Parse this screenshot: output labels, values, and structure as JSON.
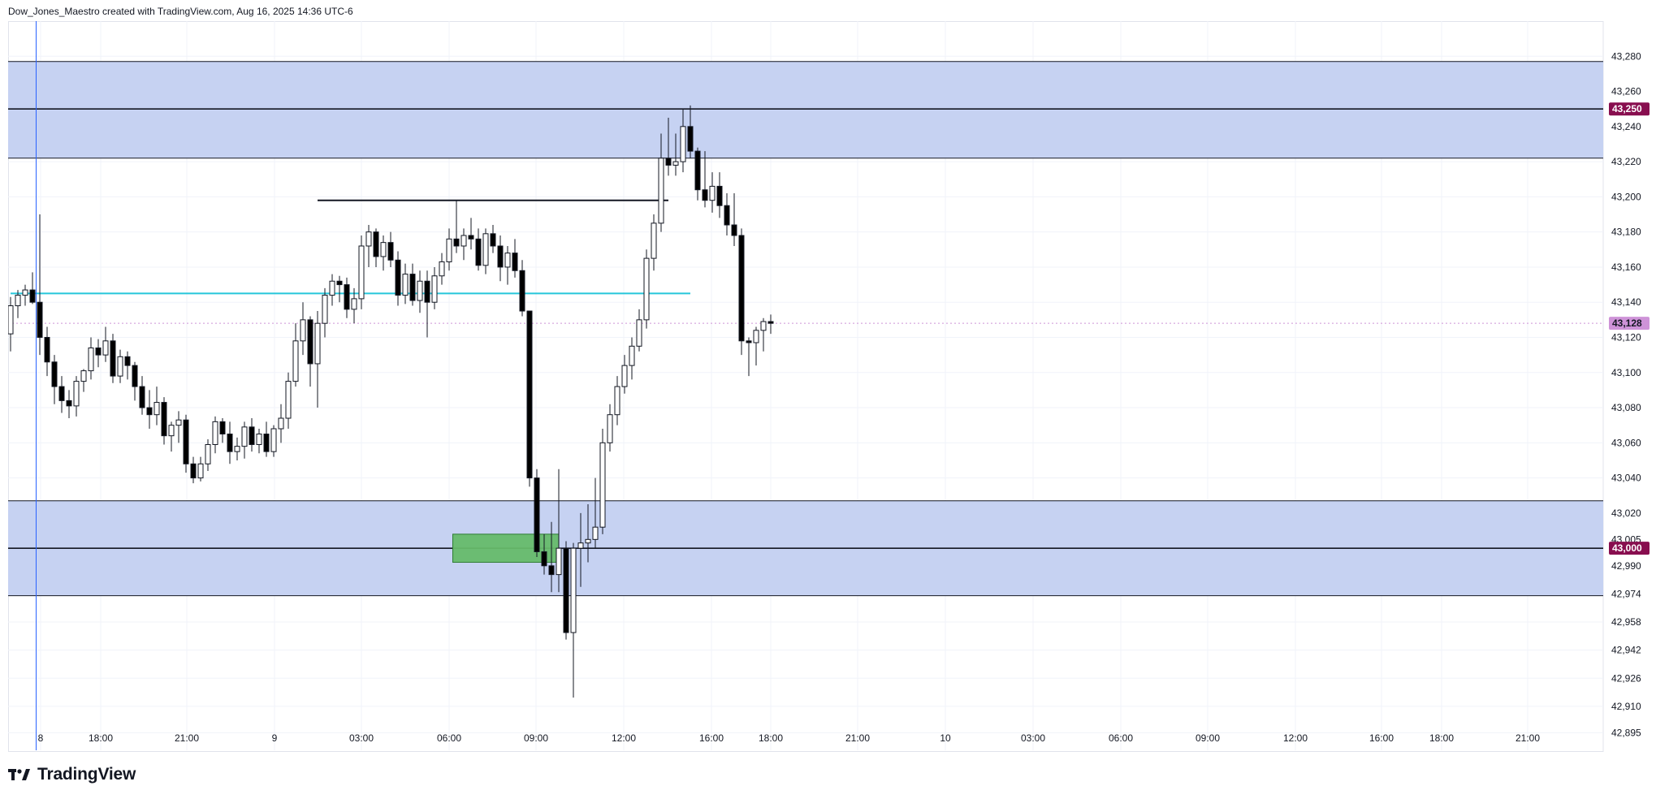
{
  "header": {
    "caption": "Dow_Jones_Maestro created with TradingView.com, Aug 16, 2025 14:36 UTC-6"
  },
  "brand": {
    "name": "TradingView",
    "icon": "tradingview-logo-icon"
  },
  "colors": {
    "zone_fill": "#c3d0f1",
    "zone_border": "#131722",
    "cyan_line": "#26c6da",
    "vertical_line": "#2962ff",
    "green_box": "#66bb6a",
    "badge_level": "#880e4f",
    "badge_price": "#ce93d8",
    "candle_up": "#ffffff",
    "candle_down": "#000000",
    "grid": "#f0f3fa"
  },
  "chart_data": {
    "type": "candlestick",
    "y_axis": {
      "ticks": [
        43280,
        43260,
        43240,
        43220,
        43200,
        43180,
        43160,
        43140,
        43120,
        43100,
        43080,
        43060,
        43040,
        43020,
        43005,
        42990,
        42974,
        42958,
        42942,
        42926,
        42910,
        42895
      ]
    },
    "x_axis": {
      "ticks": [
        "8",
        "18:00",
        "21:00",
        "9",
        "03:00",
        "06:00",
        "09:00",
        "12:00",
        "16:00",
        "18:00",
        "21:00",
        "10",
        "03:00",
        "06:00",
        "09:00",
        "12:00",
        "16:00",
        "18:00",
        "21:00"
      ]
    },
    "ylim": [
      42885,
      43300
    ],
    "price_labels": [
      {
        "value": 43250,
        "text": "43,250",
        "kind": "level"
      },
      {
        "value": 43000,
        "text": "43,000",
        "kind": "level"
      },
      {
        "value": 43128,
        "text": "43,128",
        "kind": "current"
      }
    ],
    "zones": [
      {
        "top": 43277,
        "bottom": 43222
      },
      {
        "top": 43027,
        "bottom": 42973
      }
    ],
    "horizontal_lines": [
      {
        "value": 43250,
        "style": "level"
      },
      {
        "value": 43000,
        "style": "level"
      },
      {
        "value": 43198,
        "style": "segment",
        "from_candle": 42,
        "to_candle": 90
      },
      {
        "value": 43145,
        "style": "cyan",
        "from_candle": 0,
        "to_candle": 93
      }
    ],
    "vertical_line_candle": 3.5,
    "green_box": {
      "top": 43008,
      "bottom": 42992,
      "from_candle": 60.5,
      "to_candle": 75
    },
    "candles": [
      [
        43122,
        43143,
        43112,
        43138
      ],
      [
        43138,
        43147,
        43131,
        43144
      ],
      [
        43144,
        43150,
        43138,
        43147
      ],
      [
        43147,
        43157,
        43139,
        43140
      ],
      [
        43140,
        43190,
        43110,
        43120
      ],
      [
        43120,
        43126,
        43098,
        43106
      ],
      [
        43106,
        43110,
        43082,
        43092
      ],
      [
        43092,
        43098,
        43077,
        43084
      ],
      [
        43084,
        43090,
        43074,
        43081
      ],
      [
        43081,
        43098,
        43075,
        43095
      ],
      [
        43095,
        43102,
        43089,
        43101
      ],
      [
        43101,
        43120,
        43096,
        43114
      ],
      [
        43114,
        43119,
        43103,
        43110
      ],
      [
        43110,
        43126,
        43106,
        43118
      ],
      [
        43118,
        43122,
        43094,
        43098
      ],
      [
        43098,
        43113,
        43094,
        43109
      ],
      [
        43109,
        43112,
        43096,
        43104
      ],
      [
        43104,
        43106,
        43084,
        43092
      ],
      [
        43092,
        43098,
        43076,
        43080
      ],
      [
        43080,
        43090,
        43068,
        43076
      ],
      [
        43076,
        43092,
        43070,
        43083
      ],
      [
        43083,
        43086,
        43059,
        43064
      ],
      [
        43064,
        43072,
        43055,
        43070
      ],
      [
        43070,
        43078,
        43060,
        43073
      ],
      [
        43073,
        43076,
        43043,
        43048
      ],
      [
        43048,
        43052,
        43037,
        43040
      ],
      [
        43040,
        43052,
        43038,
        43048
      ],
      [
        43048,
        43062,
        43044,
        43059
      ],
      [
        43059,
        43075,
        43054,
        43072
      ],
      [
        43072,
        43074,
        43060,
        43065
      ],
      [
        43065,
        43072,
        43048,
        43055
      ],
      [
        43055,
        43063,
        43050,
        43058
      ],
      [
        43058,
        43072,
        43051,
        43069
      ],
      [
        43069,
        43074,
        43055,
        43059
      ],
      [
        43059,
        43068,
        43054,
        43065
      ],
      [
        43065,
        43072,
        43052,
        43055
      ],
      [
        43055,
        43070,
        43052,
        43068
      ],
      [
        43068,
        43082,
        43060,
        43074
      ],
      [
        43074,
        43100,
        43068,
        43095
      ],
      [
        43095,
        43128,
        43092,
        43118
      ],
      [
        43118,
        43140,
        43110,
        43130
      ],
      [
        43130,
        43132,
        43092,
        43105
      ],
      [
        43105,
        43135,
        43080,
        43128
      ],
      [
        43128,
        43148,
        43120,
        43144
      ],
      [
        43144,
        43156,
        43138,
        43152
      ],
      [
        43152,
        43155,
        43140,
        43150
      ],
      [
        43150,
        43154,
        43131,
        43136
      ],
      [
        43136,
        43148,
        43128,
        43142
      ],
      [
        43142,
        43178,
        43136,
        43172
      ],
      [
        43172,
        43184,
        43160,
        43180
      ],
      [
        43180,
        43182,
        43160,
        43166
      ],
      [
        43166,
        43178,
        43158,
        43174
      ],
      [
        43174,
        43180,
        43160,
        43164
      ],
      [
        43164,
        43169,
        43138,
        43144
      ],
      [
        43144,
        43162,
        43139,
        43156
      ],
      [
        43156,
        43162,
        43138,
        43141
      ],
      [
        43141,
        43158,
        43134,
        43152
      ],
      [
        43152,
        43158,
        43120,
        43140
      ],
      [
        43140,
        43160,
        43136,
        43155
      ],
      [
        43155,
        43168,
        43150,
        43163
      ],
      [
        43163,
        43182,
        43158,
        43176
      ],
      [
        43176,
        43198,
        43168,
        43172
      ],
      [
        43172,
        43182,
        43164,
        43178
      ],
      [
        43178,
        43188,
        43170,
        43176
      ],
      [
        43176,
        43182,
        43158,
        43161
      ],
      [
        43161,
        43182,
        43156,
        43179
      ],
      [
        43179,
        43184,
        43168,
        43172
      ],
      [
        43172,
        43178,
        43152,
        43160
      ],
      [
        43160,
        43172,
        43150,
        43168
      ],
      [
        43168,
        43176,
        43154,
        43158
      ],
      [
        43158,
        43164,
        43132,
        43135
      ],
      [
        43135,
        43135,
        43035,
        43040
      ],
      [
        43040,
        43045,
        42995,
        42998
      ],
      [
        42998,
        43008,
        42985,
        42990
      ],
      [
        42990,
        43015,
        42975,
        42985
      ],
      [
        42985,
        43045,
        42975,
        43000
      ],
      [
        43000,
        43004,
        42948,
        42952
      ],
      [
        42952,
        43003,
        42915,
        43000
      ],
      [
        43000,
        43020,
        42978,
        43003
      ],
      [
        43003,
        43025,
        42992,
        43005
      ],
      [
        43005,
        43040,
        43000,
        43012
      ],
      [
        43012,
        43068,
        43008,
        43060
      ],
      [
        43060,
        43082,
        43055,
        43076
      ],
      [
        43076,
        43098,
        43070,
        43092
      ],
      [
        43092,
        43110,
        43088,
        43104
      ],
      [
        43104,
        43120,
        43096,
        43115
      ],
      [
        43115,
        43136,
        43112,
        43130
      ],
      [
        43130,
        43170,
        43125,
        43165
      ],
      [
        43165,
        43190,
        43158,
        43185
      ],
      [
        43185,
        43236,
        43180,
        43222
      ],
      [
        43222,
        43245,
        43212,
        43218
      ],
      [
        43218,
        43236,
        43212,
        43220
      ],
      [
        43220,
        43250,
        43214,
        43240
      ],
      [
        43240,
        43252,
        43222,
        43226
      ],
      [
        43226,
        43228,
        43198,
        43204
      ],
      [
        43204,
        43226,
        43194,
        43198
      ],
      [
        43198,
        43214,
        43191,
        43206
      ],
      [
        43206,
        43214,
        43188,
        43195
      ],
      [
        43195,
        43202,
        43178,
        43184
      ],
      [
        43184,
        43202,
        43172,
        43178
      ],
      [
        43178,
        43182,
        43110,
        43118
      ],
      [
        43118,
        43120,
        43098,
        43117
      ],
      [
        43117,
        43126,
        43104,
        43124
      ],
      [
        43124,
        43131,
        43112,
        43129
      ],
      [
        43129,
        43133,
        43122,
        43128
      ]
    ]
  }
}
